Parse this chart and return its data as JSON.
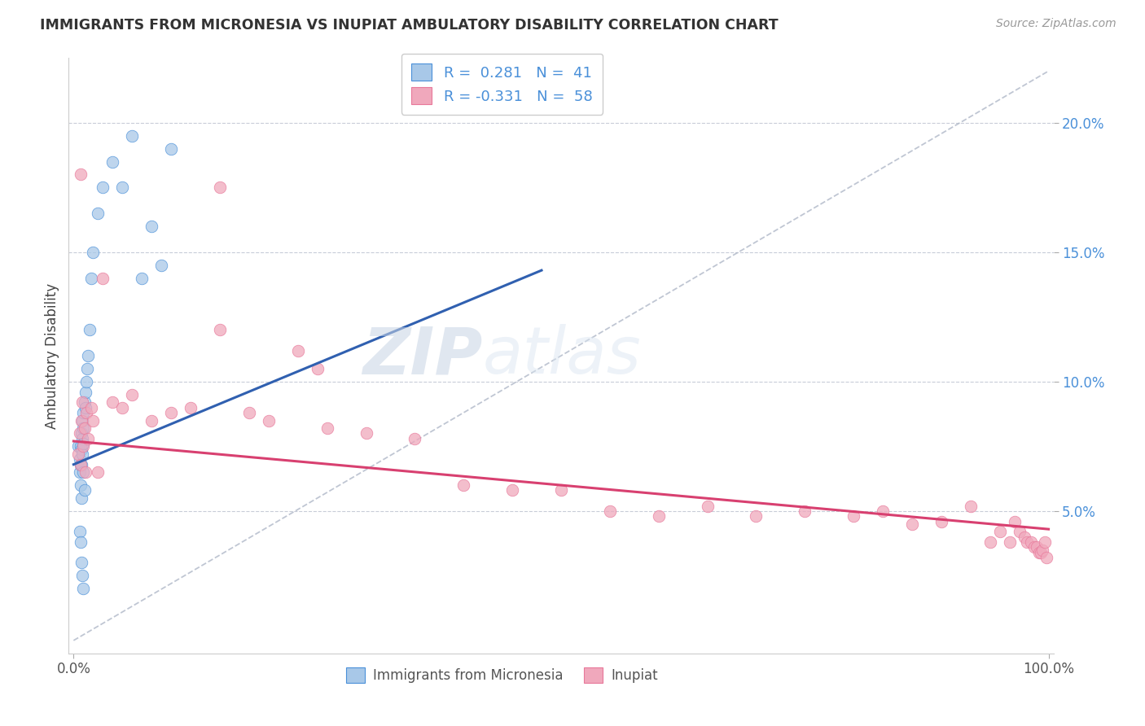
{
  "title": "IMMIGRANTS FROM MICRONESIA VS INUPIAT AMBULATORY DISABILITY CORRELATION CHART",
  "source": "Source: ZipAtlas.com",
  "ylabel": "Ambulatory Disability",
  "R_micronesia": 0.281,
  "N_micronesia": 41,
  "R_inupiat": -0.331,
  "N_inupiat": 58,
  "blue_color": "#4a90d9",
  "pink_color": "#e8789a",
  "dot_blue": "#a8c8e8",
  "dot_pink": "#f0a8bc",
  "trend_blue": "#3060b0",
  "trend_pink": "#d84070",
  "diagonal_color": "#b0b8c8",
  "watermark_zip": "ZIP",
  "watermark_atlas": "atlas",
  "y_tick_vals": [
    0.05,
    0.1,
    0.15,
    0.2
  ],
  "y_tick_labels": [
    "5.0%",
    "10.0%",
    "15.0%",
    "20.0%"
  ],
  "xlim": [
    -0.005,
    1.005
  ],
  "ylim": [
    -0.005,
    0.225
  ],
  "blue_trend_x0": 0.0,
  "blue_trend_y0": 0.068,
  "blue_trend_x1": 0.48,
  "blue_trend_y1": 0.143,
  "pink_trend_x0": 0.0,
  "pink_trend_y0": 0.077,
  "pink_trend_x1": 1.0,
  "pink_trend_y1": 0.043,
  "mic_x": [
    0.005,
    0.006,
    0.006,
    0.007,
    0.007,
    0.007,
    0.008,
    0.008,
    0.008,
    0.008,
    0.009,
    0.009,
    0.009,
    0.01,
    0.01,
    0.01,
    0.01,
    0.011,
    0.011,
    0.012,
    0.012,
    0.013,
    0.014,
    0.015,
    0.016,
    0.018,
    0.02,
    0.025,
    0.03,
    0.04,
    0.05,
    0.06,
    0.07,
    0.08,
    0.09,
    0.1,
    0.006,
    0.007,
    0.008,
    0.009,
    0.01
  ],
  "mic_y": [
    0.075,
    0.07,
    0.065,
    0.075,
    0.068,
    0.06,
    0.08,
    0.074,
    0.068,
    0.055,
    0.085,
    0.078,
    0.072,
    0.088,
    0.082,
    0.076,
    0.065,
    0.092,
    0.058,
    0.096,
    0.09,
    0.1,
    0.105,
    0.11,
    0.12,
    0.14,
    0.15,
    0.165,
    0.175,
    0.185,
    0.175,
    0.195,
    0.14,
    0.16,
    0.145,
    0.19,
    0.042,
    0.038,
    0.03,
    0.025,
    0.02
  ],
  "inp_x": [
    0.005,
    0.006,
    0.007,
    0.008,
    0.009,
    0.01,
    0.011,
    0.012,
    0.013,
    0.015,
    0.018,
    0.02,
    0.025,
    0.03,
    0.04,
    0.05,
    0.06,
    0.08,
    0.1,
    0.12,
    0.15,
    0.18,
    0.2,
    0.23,
    0.26,
    0.3,
    0.35,
    0.4,
    0.45,
    0.5,
    0.55,
    0.6,
    0.65,
    0.7,
    0.75,
    0.8,
    0.83,
    0.86,
    0.89,
    0.92,
    0.94,
    0.95,
    0.96,
    0.965,
    0.97,
    0.975,
    0.978,
    0.982,
    0.985,
    0.988,
    0.99,
    0.992,
    0.994,
    0.996,
    0.998,
    0.007,
    0.15,
    0.25
  ],
  "inp_y": [
    0.072,
    0.08,
    0.068,
    0.085,
    0.092,
    0.075,
    0.082,
    0.065,
    0.088,
    0.078,
    0.09,
    0.085,
    0.065,
    0.14,
    0.092,
    0.09,
    0.095,
    0.085,
    0.088,
    0.09,
    0.12,
    0.088,
    0.085,
    0.112,
    0.082,
    0.08,
    0.078,
    0.06,
    0.058,
    0.058,
    0.05,
    0.048,
    0.052,
    0.048,
    0.05,
    0.048,
    0.05,
    0.045,
    0.046,
    0.052,
    0.038,
    0.042,
    0.038,
    0.046,
    0.042,
    0.04,
    0.038,
    0.038,
    0.036,
    0.036,
    0.034,
    0.034,
    0.035,
    0.038,
    0.032,
    0.18,
    0.175,
    0.105
  ]
}
